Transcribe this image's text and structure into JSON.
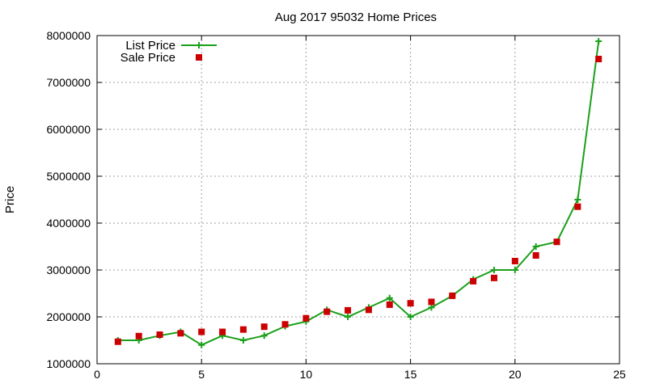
{
  "chart_data": {
    "type": "line",
    "title": "Aug 2017 95032 Home Prices",
    "xlabel": "",
    "ylabel": "Price",
    "xlim": [
      0,
      25
    ],
    "ylim": [
      1000000,
      8000000
    ],
    "xticks": [
      0,
      5,
      10,
      15,
      20,
      25
    ],
    "yticks": [
      1000000,
      2000000,
      3000000,
      4000000,
      5000000,
      6000000,
      7000000,
      8000000
    ],
    "grid": true,
    "legend_position": "top-left",
    "series": [
      {
        "name": "List Price",
        "style": "line-plus",
        "color": "#1aa01a",
        "x": [
          1,
          2,
          3,
          4,
          5,
          6,
          7,
          8,
          9,
          10,
          11,
          12,
          13,
          14,
          15,
          16,
          17,
          18,
          19,
          20,
          21,
          22,
          23,
          24
        ],
        "values": [
          1500000,
          1500000,
          1600000,
          1680000,
          1400000,
          1600000,
          1500000,
          1600000,
          1800000,
          1900000,
          2150000,
          2000000,
          2200000,
          2400000,
          2000000,
          2200000,
          2450000,
          2800000,
          3000000,
          3000000,
          3500000,
          3600000,
          4500000,
          7880000
        ]
      },
      {
        "name": "Sale Price",
        "style": "square-points",
        "color": "#cc0000",
        "x": [
          1,
          2,
          3,
          4,
          5,
          6,
          7,
          8,
          9,
          10,
          11,
          12,
          13,
          14,
          15,
          16,
          17,
          18,
          19,
          20,
          21,
          22,
          23,
          24
        ],
        "values": [
          1470000,
          1590000,
          1620000,
          1650000,
          1680000,
          1680000,
          1730000,
          1790000,
          1840000,
          1970000,
          2110000,
          2140000,
          2150000,
          2260000,
          2290000,
          2320000,
          2450000,
          2760000,
          2830000,
          3190000,
          3310000,
          3600000,
          4350000,
          7500000
        ]
      }
    ]
  }
}
